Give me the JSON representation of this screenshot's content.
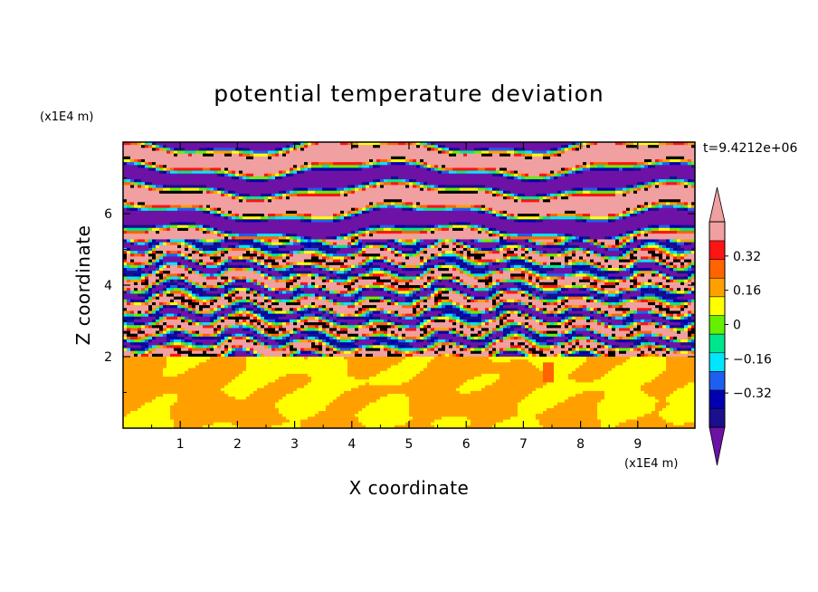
{
  "chart_data": {
    "type": "heatmap",
    "title": "potential temperature deviation",
    "xlabel": "X coordinate",
    "ylabel": "Z coordinate",
    "x_unit": "(x1E4 m)",
    "y_unit": "(x1E4 m)",
    "timestamp": "t=9.4212e+06",
    "xlim": [
      0,
      10
    ],
    "ylim": [
      0,
      8
    ],
    "x_ticks": [
      1,
      2,
      3,
      4,
      5,
      6,
      7,
      8,
      9
    ],
    "x_tick_labels": [
      "1",
      "2",
      "3",
      "4",
      "5",
      "6",
      "7",
      "8",
      "9"
    ],
    "y_ticks": [
      2,
      4,
      6
    ],
    "y_tick_labels": [
      "2",
      "4",
      "6"
    ],
    "colorbar": {
      "levels": [
        -0.48,
        -0.4,
        -0.32,
        -0.24,
        -0.16,
        -0.08,
        0.0,
        0.08,
        0.16,
        0.24,
        0.32,
        0.4,
        0.48
      ],
      "colors": [
        "#1a0f8c",
        "#0000b0",
        "#1e5ff0",
        "#00e6ff",
        "#00e68c",
        "#66f000",
        "#ffff00",
        "#ffa000",
        "#ff6400",
        "#ff1414",
        "#f0a0a0"
      ],
      "under_color": "#6e12a6",
      "over_color": "#f0a0a0",
      "labels": [
        {
          "value": 0.32,
          "text": "0.32"
        },
        {
          "value": 0.16,
          "text": "0.16"
        },
        {
          "value": 0.0,
          "text": "0"
        },
        {
          "value": -0.16,
          "text": "−0.16"
        },
        {
          "value": -0.32,
          "text": "−0.32"
        }
      ]
    },
    "field_description": {
      "lower_layer_top": 2.0,
      "stratified_layer_top": 5.3,
      "domain_top": 8.0
    }
  }
}
